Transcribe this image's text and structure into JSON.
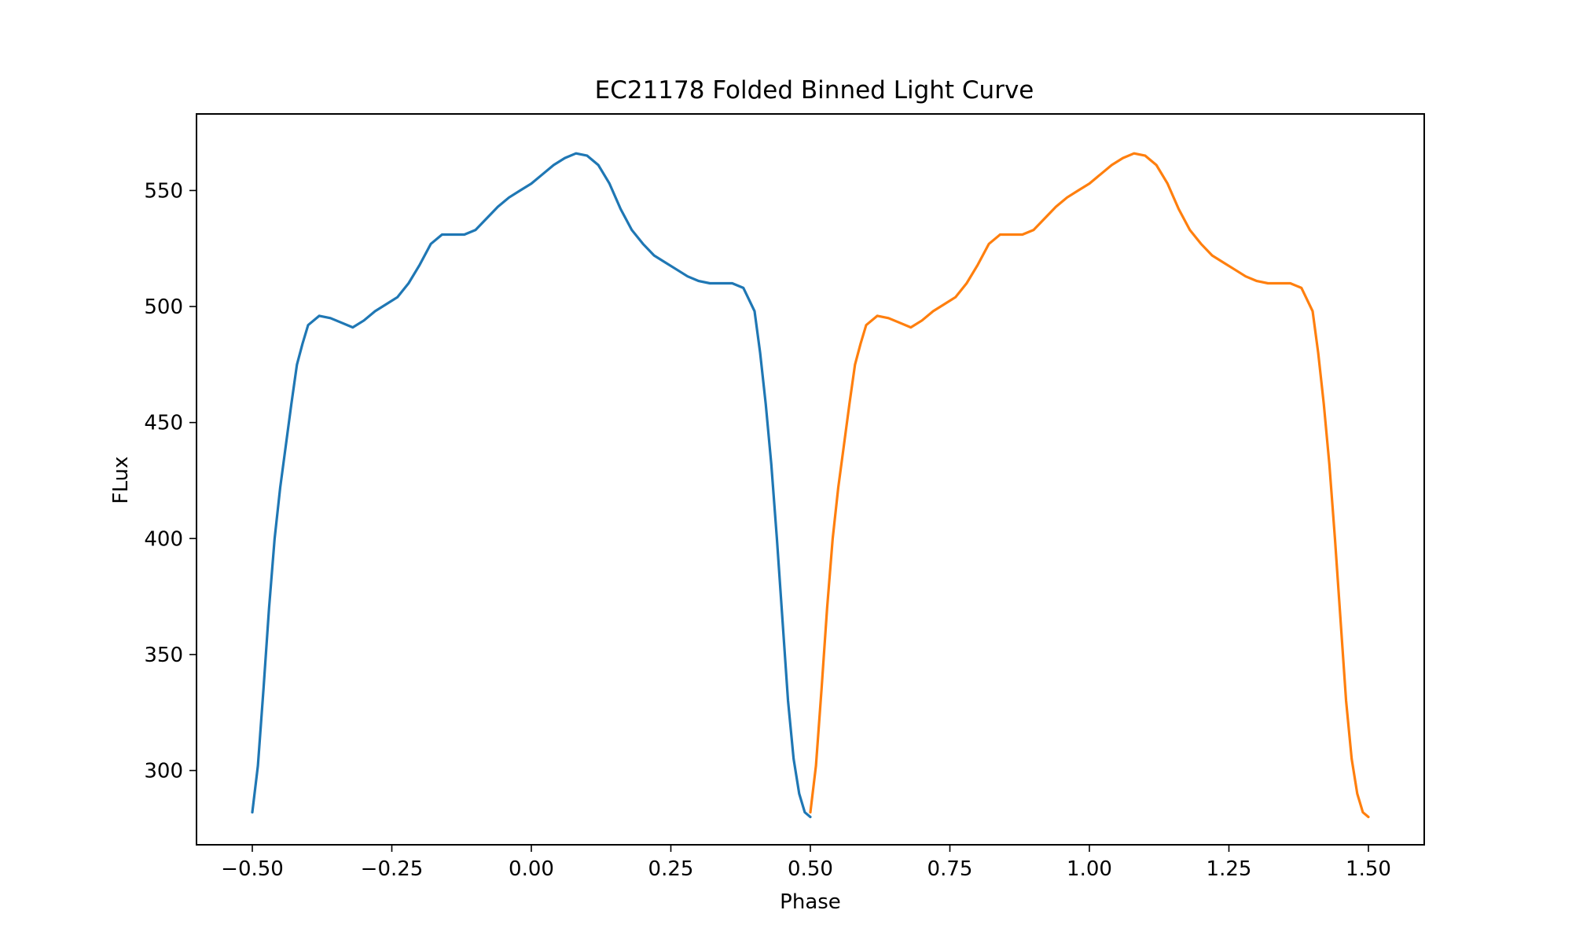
{
  "chart_data": {
    "type": "line",
    "title": "EC21178 Folded Binned Light Curve",
    "xlabel": "Phase",
    "ylabel": "FLux",
    "xlim": [
      -0.6,
      1.6
    ],
    "ylim": [
      268,
      583
    ],
    "xticks": [
      -0.5,
      -0.25,
      0.0,
      0.25,
      0.5,
      0.75,
      1.0,
      1.25,
      1.5
    ],
    "xtick_labels": [
      "−0.50",
      "−0.25",
      "0.00",
      "0.25",
      "0.50",
      "0.75",
      "1.00",
      "1.25",
      "1.50"
    ],
    "yticks": [
      300,
      350,
      400,
      450,
      500,
      550
    ],
    "ytick_labels": [
      "300",
      "350",
      "400",
      "450",
      "500",
      "550"
    ],
    "grid": false,
    "legend": "none",
    "series": [
      {
        "color": "#1f77b4",
        "x": [
          -0.5,
          -0.49,
          -0.48,
          -0.47,
          -0.46,
          -0.45,
          -0.44,
          -0.43,
          -0.42,
          -0.41,
          -0.4,
          -0.38,
          -0.36,
          -0.34,
          -0.32,
          -0.3,
          -0.28,
          -0.26,
          -0.24,
          -0.22,
          -0.2,
          -0.18,
          -0.16,
          -0.14,
          -0.12,
          -0.1,
          -0.08,
          -0.06,
          -0.04,
          -0.02,
          0.0,
          0.02,
          0.04,
          0.06,
          0.08,
          0.1,
          0.12,
          0.14,
          0.16,
          0.18,
          0.2,
          0.22,
          0.24,
          0.26,
          0.28,
          0.3,
          0.32,
          0.34,
          0.36,
          0.38,
          0.4,
          0.41,
          0.42,
          0.43,
          0.44,
          0.45,
          0.46,
          0.47,
          0.48,
          0.49,
          0.5
        ],
        "y": [
          282,
          302,
          335,
          370,
          400,
          422,
          440,
          458,
          475,
          484,
          492,
          496,
          495,
          493,
          491,
          494,
          498,
          501,
          504,
          510,
          518,
          527,
          531,
          531,
          531,
          533,
          538,
          543,
          547,
          550,
          553,
          557,
          561,
          564,
          566,
          565,
          561,
          553,
          542,
          533,
          527,
          522,
          519,
          516,
          513,
          511,
          510,
          510,
          510,
          508,
          498,
          480,
          458,
          432,
          400,
          365,
          330,
          305,
          290,
          282,
          280
        ]
      },
      {
        "color": "#ff7f0e",
        "x": [
          0.5,
          0.51,
          0.52,
          0.53,
          0.54,
          0.55,
          0.56,
          0.57,
          0.58,
          0.59,
          0.6,
          0.62,
          0.64,
          0.66,
          0.68,
          0.7,
          0.72,
          0.74,
          0.76,
          0.78,
          0.8,
          0.82,
          0.84,
          0.86,
          0.88,
          0.9,
          0.92,
          0.94,
          0.96,
          0.98,
          1.0,
          1.02,
          1.04,
          1.06,
          1.08,
          1.1,
          1.12,
          1.14,
          1.16,
          1.18,
          1.2,
          1.22,
          1.24,
          1.26,
          1.28,
          1.3,
          1.32,
          1.34,
          1.36,
          1.38,
          1.4,
          1.41,
          1.42,
          1.43,
          1.44,
          1.45,
          1.46,
          1.47,
          1.48,
          1.49,
          1.5
        ],
        "y": [
          282,
          302,
          335,
          370,
          400,
          422,
          440,
          458,
          475,
          484,
          492,
          496,
          495,
          493,
          491,
          494,
          498,
          501,
          504,
          510,
          518,
          527,
          531,
          531,
          531,
          533,
          538,
          543,
          547,
          550,
          553,
          557,
          561,
          564,
          566,
          565,
          561,
          553,
          542,
          533,
          527,
          522,
          519,
          516,
          513,
          511,
          510,
          510,
          510,
          508,
          498,
          480,
          458,
          432,
          400,
          365,
          330,
          305,
          290,
          282,
          280
        ]
      }
    ]
  }
}
